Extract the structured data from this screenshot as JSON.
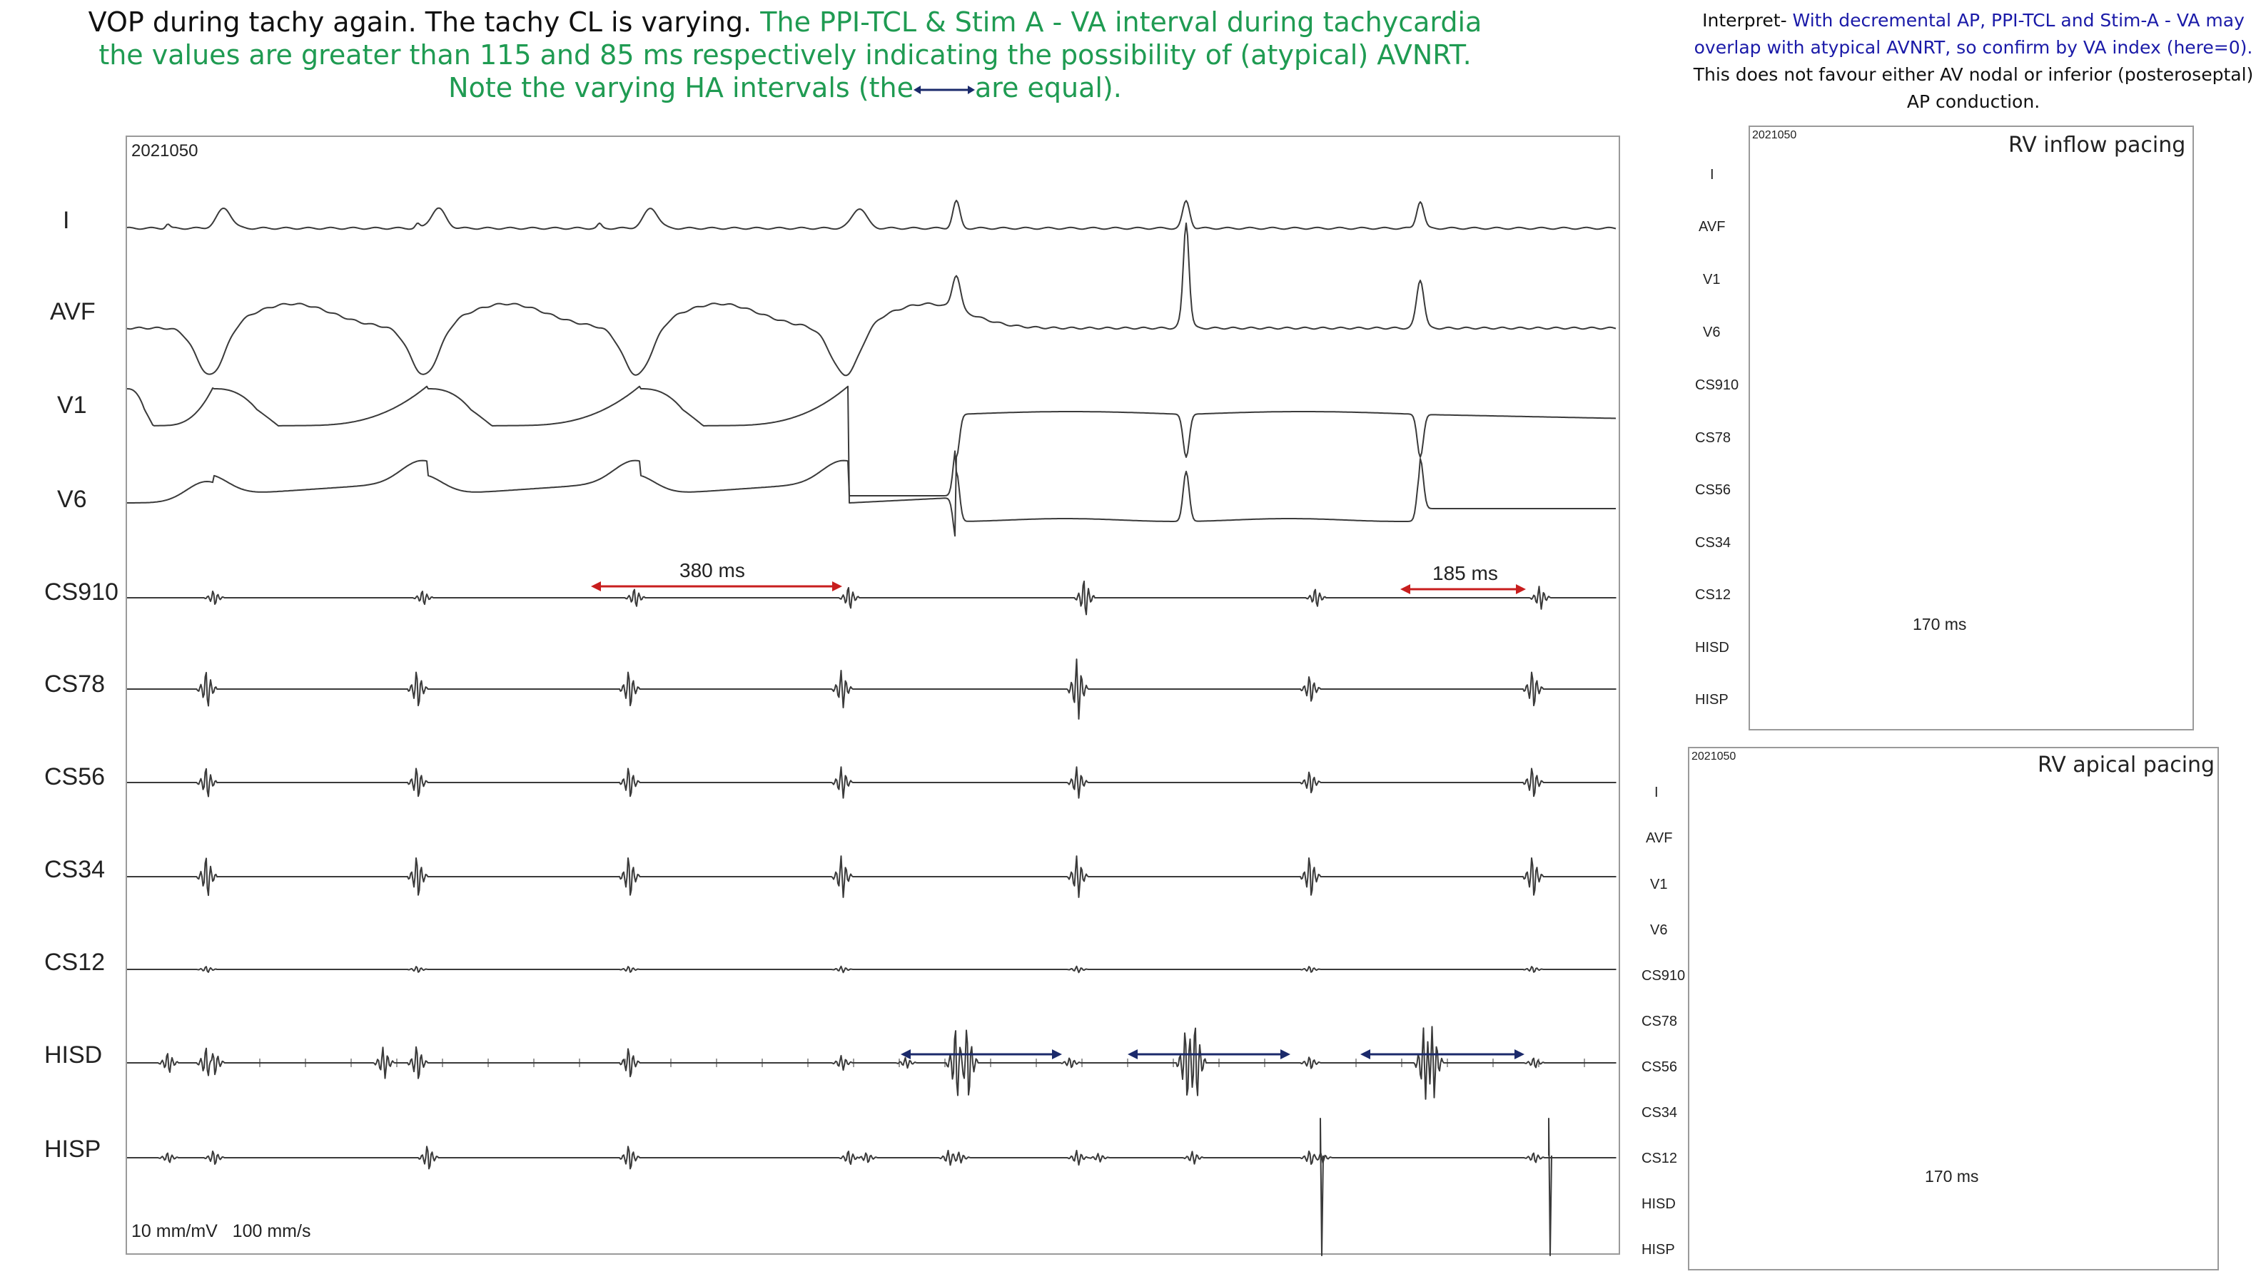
{
  "header": {
    "line1_a": "VOP during tachy again. The tachy CL is varying. ",
    "line1_b": "The PPI-TCL & Stim A - VA interval during tachycardia",
    "line2": "the values are greater than 115 and 85 ms respectively indicating the possibility of (atypical) AVNRT.",
    "line3_a": "Note the varying HA intervals (the",
    "line3_b": "are equal)."
  },
  "interpretation": {
    "prefix": "Interpret- ",
    "blue": "With decremental AP, PPI-TCL and Stim-A - VA may overlap with atypical AVNRT, so confirm by VA index (here=0).",
    "black": " This does not favour either AV nodal or inferior (posteroseptal) AP conduction."
  },
  "main_panel": {
    "id_label": "2021050",
    "scale_label": "10 mm/mV   100 mm/s",
    "leads": [
      "I",
      "AVF",
      "V1",
      "V6",
      "CS910",
      "CS78",
      "CS56",
      "CS34",
      "CS12",
      "HISD",
      "HISP"
    ],
    "measure_1": "380 ms",
    "measure_2": "185 ms"
  },
  "inflow_panel": {
    "id_label": "2021050",
    "title": "RV inflow pacing",
    "leads": [
      "I",
      "AVF",
      "V1",
      "V6",
      "CS910",
      "CS78",
      "CS56",
      "CS34",
      "CS12",
      "HISD",
      "HISP"
    ],
    "measure": "170 ms"
  },
  "apical_panel": {
    "id_label": "2021050",
    "title": "RV apical pacing",
    "leads": [
      "I",
      "AVF",
      "V1",
      "V6",
      "CS910",
      "CS78",
      "CS56",
      "CS34",
      "CS12",
      "HISD",
      "HISP"
    ],
    "measure": "170 ms"
  },
  "colors": {
    "header_green": "#1f9b52",
    "interp_blue": "#1a1aa8",
    "measure_red": "#c81e1e",
    "ha_arrow_navy": "#1b2a6b",
    "trace": "#3a3a3a"
  }
}
